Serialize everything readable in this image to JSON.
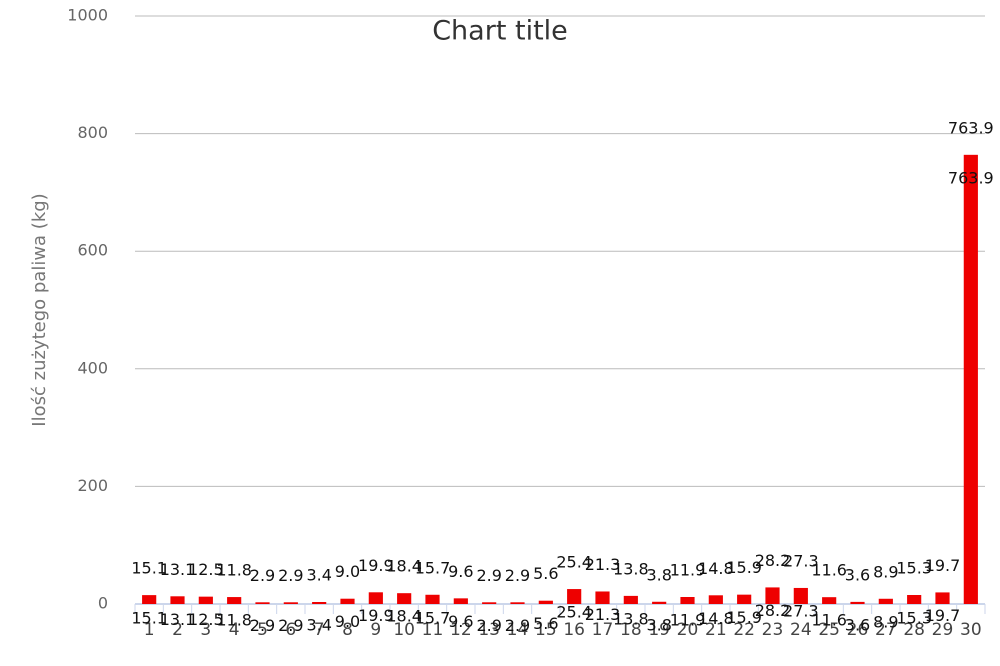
{
  "chart_data": {
    "type": "bar",
    "title": "Chart title",
    "y_label": "Ilość zużytego paliwa (kg)",
    "categories": [
      "1",
      "2",
      "3",
      "4",
      "5",
      "6",
      "7",
      "8",
      "9",
      "10",
      "11",
      "12",
      "13",
      "14",
      "15",
      "16",
      "17",
      "18",
      "19",
      "20",
      "21",
      "22",
      "23",
      "24",
      "25",
      "26",
      "27",
      "28",
      "29",
      "30"
    ],
    "values": [
      15.1,
      13.1,
      12.5,
      11.8,
      2.9,
      2.9,
      3.4,
      9.0,
      19.9,
      18.4,
      15.7,
      9.6,
      2.9,
      2.9,
      5.6,
      25.4,
      21.3,
      13.8,
      3.8,
      11.9,
      14.8,
      15.9,
      28.2,
      27.3,
      11.6,
      3.6,
      8.9,
      15.3,
      19.7,
      763.9
    ],
    "value_labels": [
      "15.1",
      "13.1",
      "12.5",
      "11.8",
      "2.9",
      "2.9",
      "3.4",
      "9.0",
      "19.9",
      "18.4",
      "15.7",
      "9.6",
      "2.9",
      "2.9",
      "5.6",
      "25.4",
      "21.3",
      "13.8",
      "3.8",
      "11.9",
      "14.8",
      "15.9",
      "28.2",
      "27.3",
      "11.6",
      "3.6",
      "8.9",
      "15.3",
      "19.7",
      "763.9"
    ],
    "color": "#ee0000",
    "ylim": [
      0,
      1000
    ],
    "yticks": [
      0,
      200,
      400,
      600,
      800,
      1000
    ],
    "grid": true
  }
}
